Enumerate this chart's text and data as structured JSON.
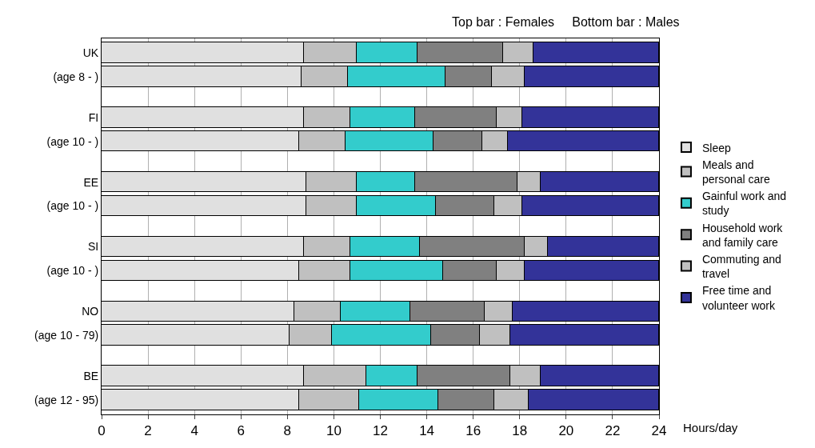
{
  "chart_data": {
    "type": "bar",
    "orientation": "horizontal",
    "stacked": true,
    "subtitle": "Top bar : Females     Bottom bar : Males",
    "xlabel": "Hours/day",
    "categories": [
      "UK",
      "(age 8 - )",
      "FI",
      "(age 10 - )",
      "EE",
      "(age 10 - )",
      "SI",
      "(age 10 - )",
      "NO",
      "(age 10 - 79)",
      "BE",
      "(age 12 - 95)"
    ],
    "series": [
      {
        "name": "Sleep",
        "color": "#e0e0e0",
        "values": [
          8.7,
          8.6,
          8.7,
          8.5,
          8.8,
          8.8,
          8.7,
          8.5,
          8.3,
          8.1,
          8.7,
          8.5
        ]
      },
      {
        "name": "Meals and personal care",
        "color": "#c0c0c0",
        "values": [
          2.3,
          2.0,
          2.0,
          2.0,
          2.2,
          2.2,
          2.0,
          2.2,
          2.0,
          1.8,
          2.7,
          2.6
        ]
      },
      {
        "name": "Gainful work and study",
        "color": "#33cccc",
        "values": [
          2.6,
          4.2,
          2.8,
          3.8,
          2.5,
          3.4,
          3.0,
          4.0,
          3.0,
          4.3,
          2.2,
          3.4
        ]
      },
      {
        "name": "Household work and family care",
        "color": "#808080",
        "values": [
          3.7,
          2.0,
          3.5,
          2.1,
          4.4,
          2.5,
          4.5,
          2.3,
          3.2,
          2.1,
          4.0,
          2.4
        ]
      },
      {
        "name": "Commuting and travel",
        "color": "#c0c0c0",
        "values": [
          1.3,
          1.4,
          1.1,
          1.1,
          1.0,
          1.2,
          1.0,
          1.2,
          1.2,
          1.3,
          1.3,
          1.5
        ]
      },
      {
        "name": "Free time and volunteer work",
        "color": "#333399",
        "values": [
          5.4,
          5.8,
          5.9,
          6.5,
          5.1,
          5.9,
          4.8,
          5.8,
          6.3,
          6.4,
          5.1,
          5.6
        ]
      }
    ],
    "xlim": [
      0,
      24
    ],
    "xticks": [
      0,
      2,
      4,
      6,
      8,
      10,
      12,
      14,
      16,
      18,
      20,
      22,
      24
    ],
    "grid": "x",
    "legend": "right"
  }
}
